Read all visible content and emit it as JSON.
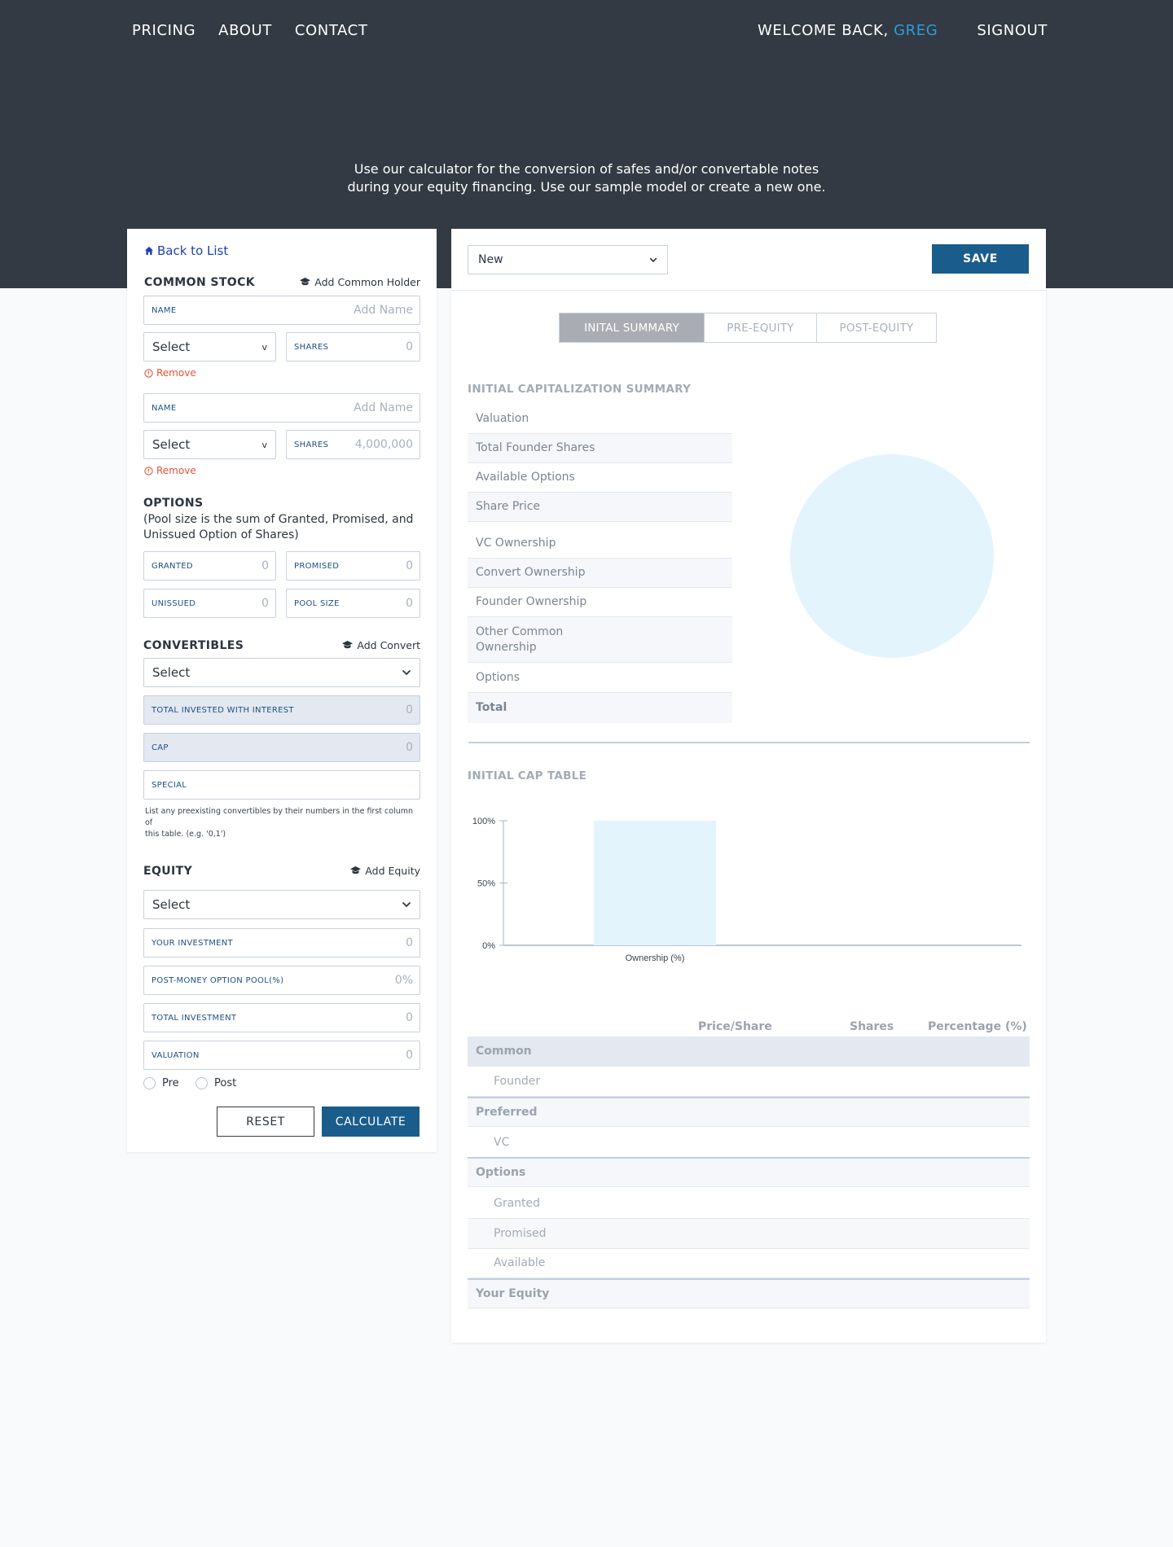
{
  "nav": {
    "links": [
      "PRICING",
      "ABOUT",
      "CONTACT"
    ],
    "welcome": "WELCOME BACK,",
    "user": "GREG",
    "signout": "SIGNOUT"
  },
  "intro": {
    "line1": "Use our calculator for the conversion of safes and/or convertable notes",
    "line2": "during your equity financing. Use our sample model or create a new one."
  },
  "left": {
    "back": "Back to List",
    "common": {
      "title": "COMMON STOCK",
      "add": "Add Common Holder",
      "holders": [
        {
          "name_label": "NAME",
          "name_placeholder": "Add Name",
          "select": "Select",
          "shares_label": "SHARES",
          "shares": "0",
          "remove": "Remove"
        },
        {
          "name_label": "NAME",
          "name_placeholder": "Add Name",
          "select": "Select",
          "shares_label": "SHARES",
          "shares": "4,000,000",
          "remove": "Remove"
        }
      ]
    },
    "options": {
      "title": "OPTIONS",
      "desc1": "(Pool size is the sum of Granted, Promised, and",
      "desc2": "Unissued Option of Shares)",
      "granted_label": "GRANTED",
      "granted": "0",
      "promised_label": "PROMISED",
      "promised": "0",
      "unissued_label": "UNISSUED",
      "unissued": "0",
      "pool_label": "POOL SIZE",
      "pool": "0"
    },
    "convertibles": {
      "title": "CONVERTIBLES",
      "add": "Add Convert",
      "select": "Select",
      "total_label": "TOTAL INVESTED WITH INTEREST",
      "total": "0",
      "cap_label": "CAP",
      "cap": "0",
      "special_label": "SPECIAL",
      "note1": "List any preexisting convertibles by their numbers in the first column of",
      "note2": "this table. (e.g. '0,1')"
    },
    "equity": {
      "title": "EQUITY",
      "add": "Add Equity",
      "select": "Select",
      "investment_label": "YOUR INVESTMENT",
      "investment": "0",
      "pool_label": "POST-MONEY OPTION POOL(%)",
      "pool": "0%",
      "total_label": "TOTAL INVESTMENT",
      "total": "0",
      "valuation_label": "VALUATION",
      "valuation": "0",
      "pre": "Pre",
      "post": "Post"
    },
    "reset": "RESET",
    "calculate": "CALCULATE"
  },
  "right": {
    "model_select": "New",
    "save": "SAVE",
    "tabs": [
      "INITAL SUMMARY",
      "PRE-EQUITY",
      "POST-EQUITY"
    ],
    "summary_title": "INITIAL CAPITALIZATION SUMMARY",
    "summary_rows": [
      "Valuation",
      "Total Founder Shares",
      "Available Options",
      "Share Price",
      "VC Ownership",
      "Convert Ownership",
      "Founder Ownership",
      "Other Common",
      "Ownership",
      "Options",
      "Total"
    ],
    "cap_table_title": "INITIAL CAP TABLE",
    "table_headers": [
      "Price/Share",
      "Shares",
      "Percentage (%)"
    ],
    "table": {
      "common": "Common",
      "founder": "Founder",
      "preferred": "Preferred",
      "vc": "VC",
      "options": "Options",
      "granted": "Granted",
      "promised": "Promised",
      "available": "Available",
      "your_equity": "Your Equity"
    }
  },
  "chart_data": {
    "type": "bar",
    "categories": [
      "Ownership (%)"
    ],
    "values": [
      100
    ],
    "ylim": [
      0,
      100
    ],
    "yticks": [
      "100%",
      "50%",
      "0%"
    ],
    "color": "#e4f4fc"
  }
}
